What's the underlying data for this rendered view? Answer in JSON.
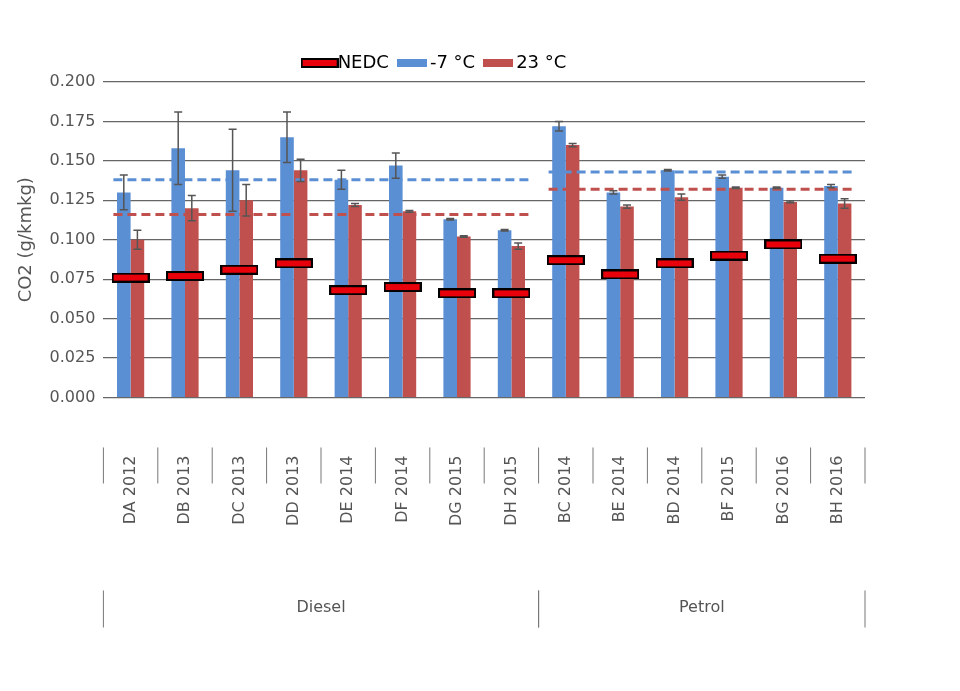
{
  "chart_data": {
    "type": "bar",
    "y_label": "CO2 (g/kmkg)",
    "categories": [
      "DA 2012",
      "DB 2013",
      "DC 2013",
      "DD 2013",
      "DE 2014",
      "DF 2014",
      "DG 2015",
      "DH 2015",
      "BC 2014",
      "BE 2014",
      "BD 2014",
      "BF 2015",
      "BG 2016",
      "BH 2016"
    ],
    "groups": [
      "Diesel",
      "Diesel",
      "Diesel",
      "Diesel",
      "Diesel",
      "Diesel",
      "Diesel",
      "Diesel",
      "Petrol",
      "Petrol",
      "Petrol",
      "Petrol",
      "Petrol",
      "Petrol"
    ],
    "series": [
      {
        "name": "NEDC",
        "type": "line",
        "marker": "rect",
        "line_style": "none",
        "color": "#e8000b",
        "values": [
          0.076,
          0.077,
          0.081,
          0.085,
          0.068,
          0.07,
          0.066,
          0.066,
          0.087,
          0.078,
          0.085,
          0.09,
          0.097,
          0.088
        ]
      },
      {
        "name": "-7 °C",
        "type": "bar",
        "color": "#5a8fd4",
        "values": [
          0.13,
          0.158,
          0.144,
          0.165,
          0.138,
          0.147,
          0.113,
          0.106,
          0.172,
          0.13,
          0.144,
          0.14,
          0.133,
          0.134
        ],
        "errors": [
          0.011,
          0.023,
          0.026,
          0.016,
          0.006,
          0.008,
          0.0005,
          0.0005,
          0.003,
          0.001,
          0.0005,
          0.001,
          0.0005,
          0.001
        ]
      },
      {
        "name": "23 °C",
        "type": "bar",
        "color": "#c0504d",
        "values": [
          0.1,
          0.12,
          0.125,
          0.144,
          0.122,
          0.118,
          0.102,
          0.096,
          0.16,
          0.121,
          0.127,
          0.133,
          0.124,
          0.123
        ],
        "errors": [
          0.006,
          0.008,
          0.01,
          0.007,
          0.001,
          0.0005,
          0.0005,
          0.002,
          0.001,
          0.001,
          0.002,
          0.0005,
          0.0005,
          0.003
        ]
      }
    ],
    "reference_lines": [
      {
        "group": "Diesel",
        "series": "-7 °C",
        "value": 0.138,
        "line_style": "dashed"
      },
      {
        "group": "Diesel",
        "series": "23 °C",
        "value": 0.116,
        "line_style": "dashed"
      },
      {
        "group": "Petrol",
        "series": "-7 °C",
        "value": 0.143,
        "line_style": "dashed"
      },
      {
        "group": "Petrol",
        "series": "23 °C",
        "value": 0.132,
        "line_style": "dashed"
      }
    ],
    "ylim": [
      0,
      0.2
    ],
    "yticks": [
      {
        "value": 0,
        "label": "0.000"
      },
      {
        "value": 0.025,
        "label": "0.025"
      },
      {
        "value": 0.05,
        "label": "0.050"
      },
      {
        "value": 0.075,
        "label": "0.075"
      },
      {
        "value": 0.1,
        "label": "0.100"
      },
      {
        "value": 0.125,
        "label": "0.125"
      },
      {
        "value": 0.15,
        "label": "0.150"
      },
      {
        "value": 0.175,
        "label": "0.175"
      },
      {
        "value": 0.2,
        "label": "0.200"
      }
    ],
    "grid": true,
    "legend": "top"
  }
}
